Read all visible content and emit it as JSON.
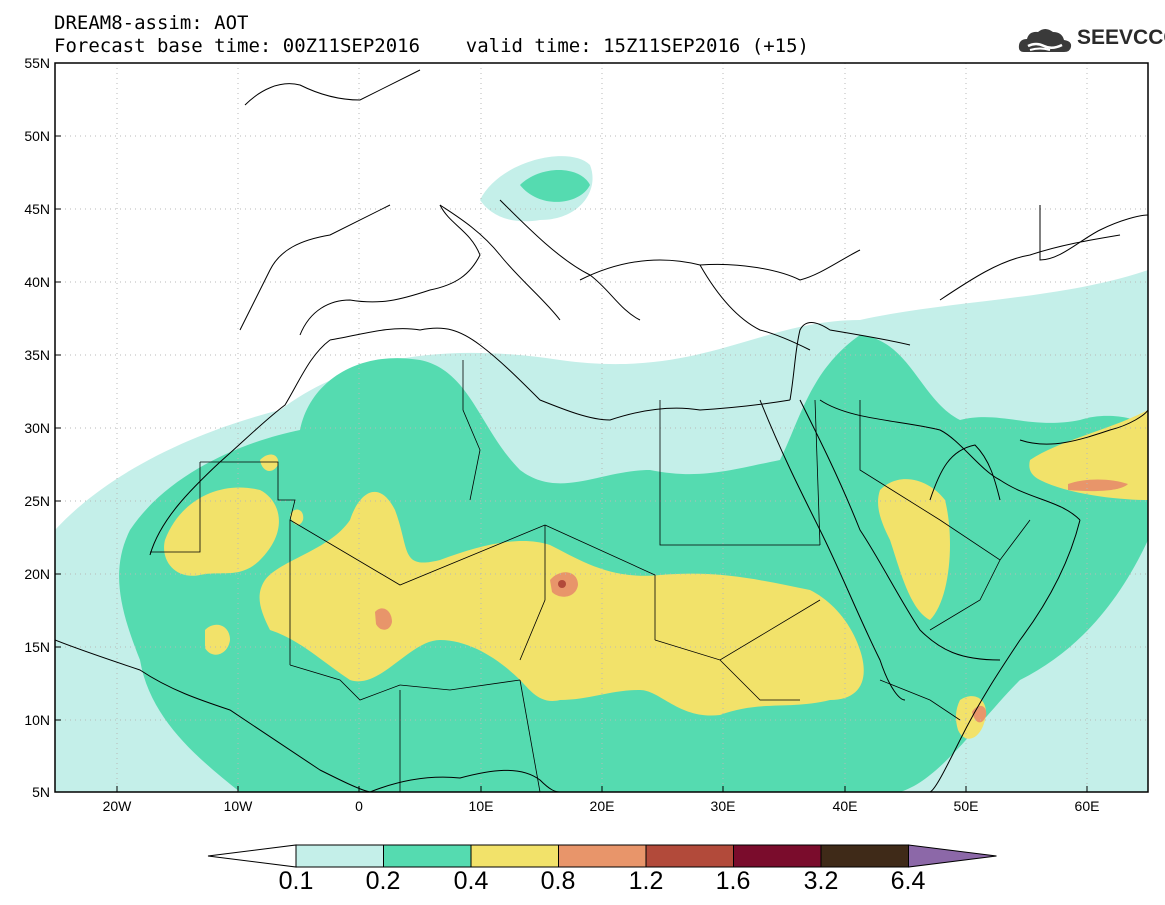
{
  "header": {
    "line1": "DREAM8-assim: AOT",
    "line2": "Forecast base time: 00Z11SEP2016    valid time: 15Z11SEP2016 (+15)",
    "logo_text": "SEEVCCC",
    "logo_icon": "cloud-icon"
  },
  "map": {
    "lon_range": [
      -25,
      65
    ],
    "lat_range": [
      5,
      55
    ],
    "grid": "dotted",
    "lat_labels": [
      "55N",
      "50N",
      "45N",
      "40N",
      "35N",
      "30N",
      "25N",
      "20N",
      "15N",
      "10N",
      "5N"
    ],
    "lon_labels": [
      "20W",
      "10W",
      "0",
      "10E",
      "20E",
      "30E",
      "40E",
      "50E",
      "60E"
    ],
    "field": "AOT"
  },
  "colorbar": {
    "labels": [
      "0.1",
      "0.2",
      "0.4",
      "0.8",
      "1.2",
      "1.6",
      "3.2",
      "6.4"
    ],
    "colors": [
      "#ffffff",
      "#c4efe9",
      "#55dbb0",
      "#f2e26a",
      "#e8956a",
      "#b24a3a",
      "#7a0c2c",
      "#3f2a18",
      "#8c68a8"
    ]
  }
}
